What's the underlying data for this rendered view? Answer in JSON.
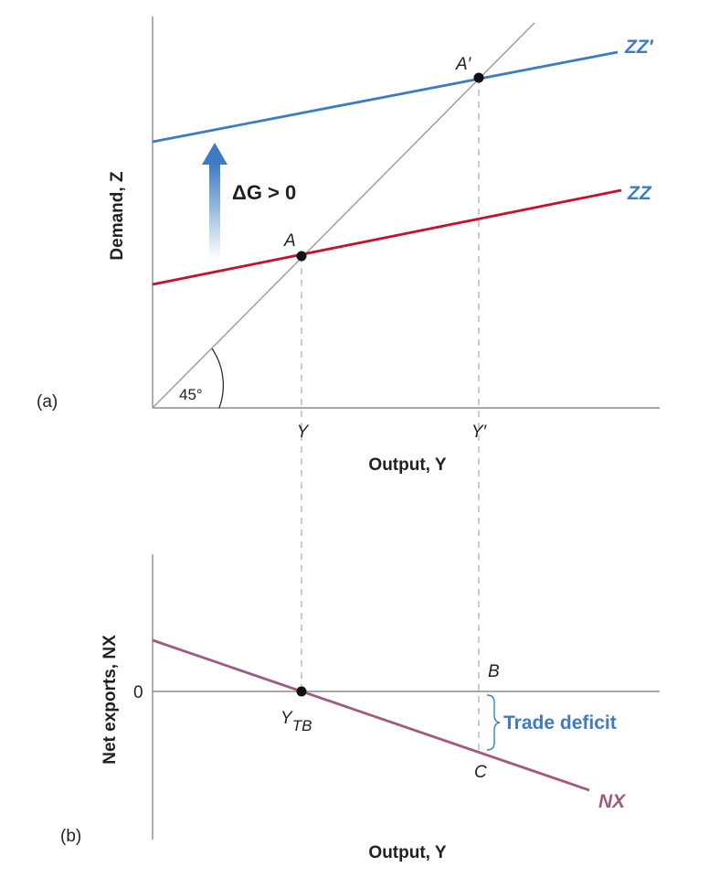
{
  "colors": {
    "zz": "#c8102e",
    "zz_prime": "#3b7cc4",
    "nx": "#a05a7f",
    "guide": "#9a9a9a",
    "axis": "#8c8c8c",
    "text": "#231f20",
    "deficit": "#3b7cc4"
  },
  "panel_a": {
    "tag": "(a)",
    "y_axis_label": "Demand, Z",
    "x_axis_label": "Output, Y",
    "angle_label": "45°",
    "shift_label": "ΔG > 0",
    "curve_zz": "ZZ",
    "curve_zz_prime": "ZZ′",
    "point_a": "A",
    "point_a_prime": "A′",
    "tick_y": "Y",
    "tick_y_prime": "Y′"
  },
  "panel_b": {
    "tag": "(b)",
    "y_axis_label": "Net exports, NX",
    "x_axis_label": "Output, Y",
    "zero_label": "0",
    "curve_nx": "NX",
    "point_ytb_main": "Y",
    "point_ytb_sub": "TB",
    "point_b": "B",
    "point_c": "C",
    "trade_deficit": "Trade deficit"
  }
}
